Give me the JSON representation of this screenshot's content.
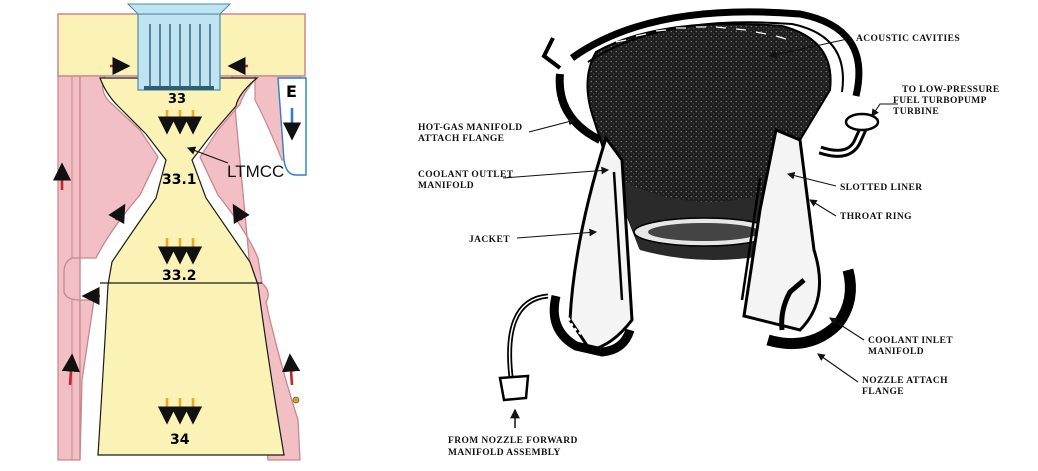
{
  "left_panel": {
    "stations": {
      "s33": "33",
      "s33_1": "33.1",
      "s33_2": "33.2",
      "s34": "34"
    },
    "callout": "LTMCC",
    "edge_letter": "E",
    "colors": {
      "gas": "#fbf3b6",
      "wall": "#f2c0c4",
      "wall_edge": "#c9868d",
      "flow_arrow": "#f5a623",
      "coolant_arrow": "#cc2229",
      "blue_arrow": "#2f7ec7",
      "injector": "#bfe3f0"
    }
  },
  "right_panel": {
    "labels": {
      "acoustic": "ACOUSTIC CAVITIES",
      "lowp_1": "TO LOW-PRESSURE",
      "lowp_2": "FUEL TURBOPUMP",
      "lowp_3": "TURBINE",
      "hotgas_1": "HOT-GAS MANIFOLD",
      "hotgas_2": "ATTACH FLANGE",
      "coolout_1": "COOLANT OUTLET",
      "coolout_2": "MANIFOLD",
      "slotted": "SLOTTED LINER",
      "throat": "THROAT RING",
      "jacket": "JACKET",
      "coolin_1": "COOLANT INLET",
      "coolin_2": "MANIFOLD",
      "nozzle_1": "NOZZLE ATTACH",
      "nozzle_2": "FLANGE",
      "from_1": "FROM NOZZLE FORWARD",
      "from_2": "MANIFOLD ASSEMBLY"
    }
  }
}
